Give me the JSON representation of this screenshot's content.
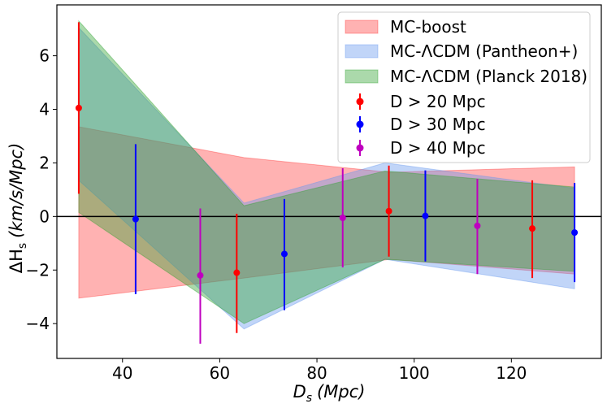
{
  "chart_data": {
    "type": "errorbar_with_bands",
    "xlabel_main": "D",
    "xlabel_sub": "s",
    "xlabel_unit": "(Mpc)",
    "ylabel_prefix": "ΔH",
    "ylabel_sub": "s",
    "ylabel_unit": "(km/s/Mpc)",
    "xlim": [
      26.5,
      138.5
    ],
    "ylim": [
      -5.3,
      7.9
    ],
    "xticks": [
      40,
      60,
      80,
      100,
      120
    ],
    "yticks": [
      -4,
      -2,
      0,
      2,
      4,
      6
    ],
    "ytick_labels": [
      "−4",
      "−2",
      "0",
      "2",
      "4",
      "6"
    ],
    "zero_line": true,
    "bands": [
      {
        "name": "MC-boost",
        "color": "#ff0000",
        "alpha": 0.3,
        "x": [
          31,
          65,
          95,
          133
        ],
        "upper": [
          3.35,
          2.2,
          1.65,
          1.85
        ],
        "lower": [
          -3.05,
          -2.3,
          -1.6,
          -2.15
        ]
      },
      {
        "name": "MC-ΛCDM (Pantheon+)",
        "color": "#6495ed",
        "alpha": 0.4,
        "x": [
          31,
          65,
          94,
          133
        ],
        "upper": [
          7.05,
          0.5,
          2.0,
          1.05
        ],
        "lower": [
          1.35,
          -4.2,
          -1.6,
          -2.7
        ]
      },
      {
        "name": "MC-ΛCDM (Planck 2018)",
        "color": "#2ca02c",
        "alpha": 0.4,
        "x": [
          31,
          65,
          94,
          133
        ],
        "upper": [
          7.3,
          0.4,
          1.7,
          1.1
        ],
        "lower": [
          0.15,
          -4.0,
          -1.6,
          -2.05
        ]
      }
    ],
    "series": [
      {
        "name": "D > 20 Mpc",
        "color": "#ff0000",
        "points": [
          {
            "x": 31.0,
            "y": 4.05,
            "err_low": 3.2,
            "err_high": 3.2
          },
          {
            "x": 63.5,
            "y": -2.1,
            "err_low": 2.25,
            "err_high": 2.2
          },
          {
            "x": 94.8,
            "y": 0.2,
            "err_low": 1.7,
            "err_high": 1.7
          },
          {
            "x": 124.3,
            "y": -0.45,
            "err_low": 1.85,
            "err_high": 1.8
          }
        ]
      },
      {
        "name": "D > 30 Mpc",
        "color": "#0000ff",
        "points": [
          {
            "x": 42.7,
            "y": -0.1,
            "err_low": 2.8,
            "err_high": 2.8
          },
          {
            "x": 73.3,
            "y": -1.4,
            "err_low": 2.1,
            "err_high": 2.05
          },
          {
            "x": 102.3,
            "y": 0.02,
            "err_low": 1.7,
            "err_high": 1.7
          },
          {
            "x": 133.0,
            "y": -0.6,
            "err_low": 1.85,
            "err_high": 1.85
          }
        ]
      },
      {
        "name": "D > 40 Mpc",
        "color": "#bf00bf",
        "points": [
          {
            "x": 56.0,
            "y": -2.2,
            "err_low": 2.55,
            "err_high": 2.5
          },
          {
            "x": 85.3,
            "y": -0.05,
            "err_low": 1.85,
            "err_high": 1.85
          },
          {
            "x": 113.0,
            "y": -0.35,
            "err_low": 1.8,
            "err_high": 1.75
          }
        ]
      }
    ],
    "legend_position": "upper-right"
  }
}
